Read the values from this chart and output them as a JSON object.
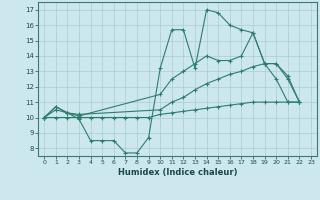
{
  "xlabel": "Humidex (Indice chaleur)",
  "bg_color": "#cce8ee",
  "grid_color": "#aacccc",
  "line_color": "#2d7d6e",
  "xlim": [
    -0.5,
    23.5
  ],
  "ylim": [
    7.5,
    17.5
  ],
  "yticks": [
    8,
    9,
    10,
    11,
    12,
    13,
    14,
    15,
    16,
    17
  ],
  "xticks": [
    0,
    1,
    2,
    3,
    4,
    5,
    6,
    7,
    8,
    9,
    10,
    11,
    12,
    13,
    14,
    15,
    16,
    17,
    18,
    19,
    20,
    21,
    22,
    23
  ],
  "curve1_x": [
    0,
    1,
    2,
    3,
    4,
    5,
    6,
    7,
    8,
    9,
    10,
    11,
    12,
    13,
    14,
    15,
    16,
    17,
    18,
    19,
    20,
    21,
    22
  ],
  "curve1_y": [
    10.0,
    10.7,
    10.3,
    9.9,
    8.5,
    8.5,
    8.5,
    7.7,
    7.7,
    8.7,
    13.2,
    15.7,
    15.7,
    13.2,
    17.0,
    16.8,
    16.0,
    15.7,
    15.5,
    13.5,
    12.5,
    11.0,
    11.0
  ],
  "curve2_x": [
    0,
    1,
    2,
    3,
    10,
    11,
    12,
    13,
    14,
    15,
    16,
    17,
    18,
    19,
    20,
    21,
    22
  ],
  "curve2_y": [
    10.0,
    10.7,
    10.3,
    10.1,
    11.5,
    12.5,
    13.0,
    13.5,
    14.0,
    13.7,
    13.7,
    14.0,
    15.5,
    13.5,
    13.5,
    12.5,
    11.0
  ],
  "curve3_x": [
    0,
    1,
    2,
    3,
    10,
    11,
    12,
    13,
    14,
    15,
    16,
    17,
    18,
    19,
    20,
    21,
    22
  ],
  "curve3_y": [
    10.0,
    10.5,
    10.3,
    10.2,
    10.5,
    11.0,
    11.3,
    11.8,
    12.2,
    12.5,
    12.8,
    13.0,
    13.3,
    13.5,
    13.5,
    12.7,
    11.0
  ],
  "curve4_x": [
    0,
    1,
    2,
    3,
    4,
    5,
    6,
    7,
    8,
    9,
    10,
    11,
    12,
    13,
    14,
    15,
    16,
    17,
    18,
    19,
    20,
    21,
    22
  ],
  "curve4_y": [
    10.0,
    10.0,
    10.0,
    10.0,
    10.0,
    10.0,
    10.0,
    10.0,
    10.0,
    10.0,
    10.2,
    10.3,
    10.4,
    10.5,
    10.6,
    10.7,
    10.8,
    10.9,
    11.0,
    11.0,
    11.0,
    11.0,
    11.0
  ]
}
